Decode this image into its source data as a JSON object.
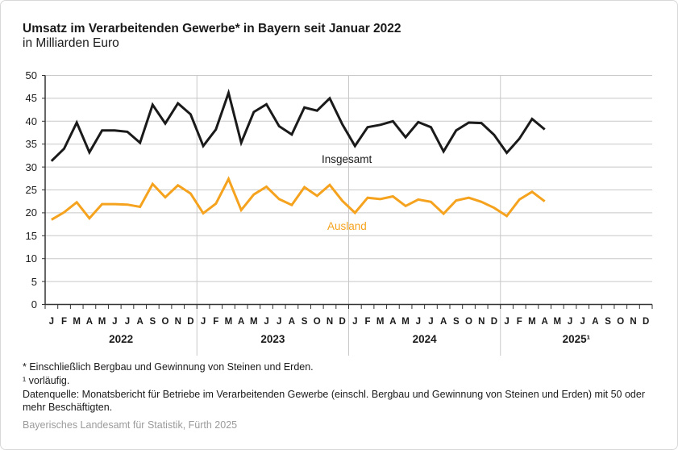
{
  "header": {
    "title": "Umsatz im Verarbeitenden Gewerbe* in Bayern seit Januar 2022",
    "subtitle": "in Milliarden Euro"
  },
  "chart_data": {
    "type": "line",
    "title": "Umsatz im Verarbeitenden Gewerbe* in Bayern seit Januar 2022",
    "subtitle": "in Milliarden Euro",
    "ylim": [
      0,
      50
    ],
    "ytick_step": 5,
    "grid": true,
    "month_letters": [
      "J",
      "F",
      "M",
      "A",
      "M",
      "J",
      "J",
      "A",
      "S",
      "O",
      "N",
      "D"
    ],
    "year_labels": [
      "2022",
      "2023",
      "2024",
      "2025¹"
    ],
    "months_per_year": 12,
    "colors": {
      "insgesamt": "#1a1a1a",
      "ausland": "#F5A31E",
      "grid": "#c8c8c8",
      "axis": "#333333"
    },
    "series": [
      {
        "name": "Insgesamt",
        "color": "#1a1a1a",
        "values": [
          31.3,
          34.0,
          39.7,
          33.2,
          38.0,
          38.0,
          37.7,
          35.3,
          43.6,
          39.5,
          43.9,
          41.5,
          34.6,
          38.2,
          46.2,
          35.3,
          42.0,
          43.7,
          38.9,
          37.1,
          43.0,
          42.3,
          45.0,
          39.3,
          34.6,
          38.7,
          39.2,
          40.0,
          36.5,
          39.8,
          38.7,
          33.4,
          38.0,
          39.7,
          39.6,
          37.0,
          33.1,
          36.2,
          40.5,
          38.2
        ]
      },
      {
        "name": "Ausland",
        "color": "#F5A31E",
        "values": [
          18.5,
          20.1,
          22.3,
          18.8,
          21.9,
          21.9,
          21.8,
          21.3,
          26.3,
          23.4,
          26.0,
          24.2,
          19.9,
          22.0,
          27.4,
          20.6,
          24.0,
          25.7,
          23.0,
          21.7,
          25.6,
          23.7,
          26.1,
          22.6,
          20.0,
          23.3,
          23.0,
          23.6,
          21.5,
          22.9,
          22.4,
          19.8,
          22.7,
          23.3,
          22.4,
          21.1,
          19.3,
          22.9,
          24.6,
          22.5
        ]
      }
    ],
    "legend_position": "inline-labels"
  },
  "footnotes": [
    "* Einschließlich Bergbau und Gewinnung von Steinen und Erden.",
    "¹ vorläufig.",
    "Datenquelle: Monatsbericht für Betriebe im Verarbeitenden Gewerbe (einschl. Bergbau und Gewinnung von Steinen und Erden) mit 50 oder mehr Beschäftigten."
  ],
  "source": "Bayerisches Landesamt für Statistik, Fürth 2025"
}
